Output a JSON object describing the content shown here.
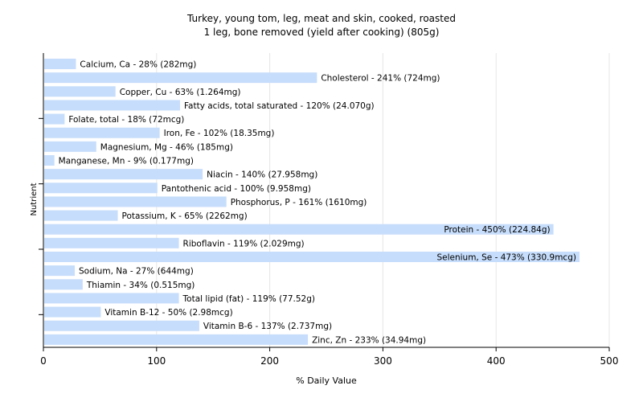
{
  "chart_data": {
    "type": "bar",
    "orientation": "horizontal",
    "title": "Turkey, young tom, leg, meat and skin, cooked, roasted",
    "subtitle": "1 leg, bone removed (yield after cooking) (805g)",
    "xlabel": "% Daily Value",
    "ylabel": "Nutrient",
    "xlim": [
      0,
      500
    ],
    "xticks": [
      0,
      100,
      200,
      300,
      400,
      500
    ],
    "grid": true,
    "bar_color": "#c6ddfb",
    "categories": [
      "Calcium, Ca",
      "Cholesterol",
      "Copper, Cu",
      "Fatty acids, total saturated",
      "Folate, total",
      "Iron, Fe",
      "Magnesium, Mg",
      "Manganese, Mn",
      "Niacin",
      "Pantothenic acid",
      "Phosphorus, P",
      "Potassium, K",
      "Protein",
      "Riboflavin",
      "Selenium, Se",
      "Sodium, Na",
      "Thiamin",
      "Total lipid (fat)",
      "Vitamin B-12",
      "Vitamin B-6",
      "Zinc, Zn"
    ],
    "values": [
      28,
      241,
      63,
      120,
      18,
      102,
      46,
      9,
      140,
      100,
      161,
      65,
      450,
      119,
      473,
      27,
      34,
      119,
      50,
      137,
      233
    ],
    "labels": [
      "Calcium, Ca - 28% (282mg)",
      "Cholesterol - 241% (724mg)",
      "Copper, Cu - 63% (1.264mg)",
      "Fatty acids, total saturated - 120% (24.070g)",
      "Folate, total - 18% (72mcg)",
      "Iron, Fe - 102% (18.35mg)",
      "Magnesium, Mg - 46% (185mg)",
      "Manganese, Mn - 9% (0.177mg)",
      "Niacin - 140% (27.958mg)",
      "Pantothenic acid - 100% (9.958mg)",
      "Phosphorus, P - 161% (1610mg)",
      "Potassium, K - 65% (2262mg)",
      "Protein - 450% (224.84g)",
      "Riboflavin - 119% (2.029mg)",
      "Selenium, Se - 473% (330.9mcg)",
      "Sodium, Na - 27% (644mg)",
      "Thiamin - 34% (0.515mg)",
      "Total lipid (fat) - 119% (77.52g)",
      "Vitamin B-12 - 50% (2.98mcg)",
      "Vitamin B-6 - 137% (2.737mg)",
      "Zinc, Zn - 233% (34.94mg)"
    ]
  }
}
